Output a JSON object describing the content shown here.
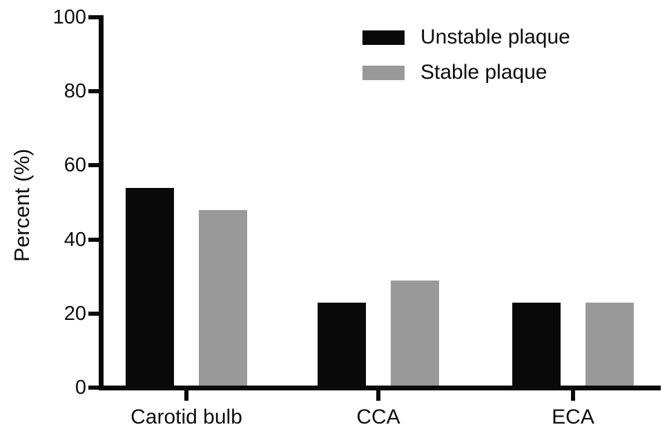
{
  "chart_data": {
    "type": "bar",
    "title": "",
    "xlabel": "",
    "ylabel": "Percent (%)",
    "ylim": [
      0,
      100
    ],
    "yticks": [
      0,
      20,
      40,
      60,
      80,
      100
    ],
    "categories": [
      "Carotid bulb",
      "CCA",
      "ECA"
    ],
    "series": [
      {
        "name": "Unstable plaque",
        "color": "#0a0a0a",
        "values": [
          54,
          23,
          23
        ]
      },
      {
        "name": "Stable plaque",
        "color": "#999999",
        "values": [
          48,
          29,
          23
        ]
      }
    ],
    "grid": false,
    "legend_position": "top-right"
  },
  "colors": {
    "axis": "#0a0a0a",
    "background": "#ffffff",
    "unstable_plaque": "#0a0a0a",
    "stable_plaque": "#999999"
  }
}
